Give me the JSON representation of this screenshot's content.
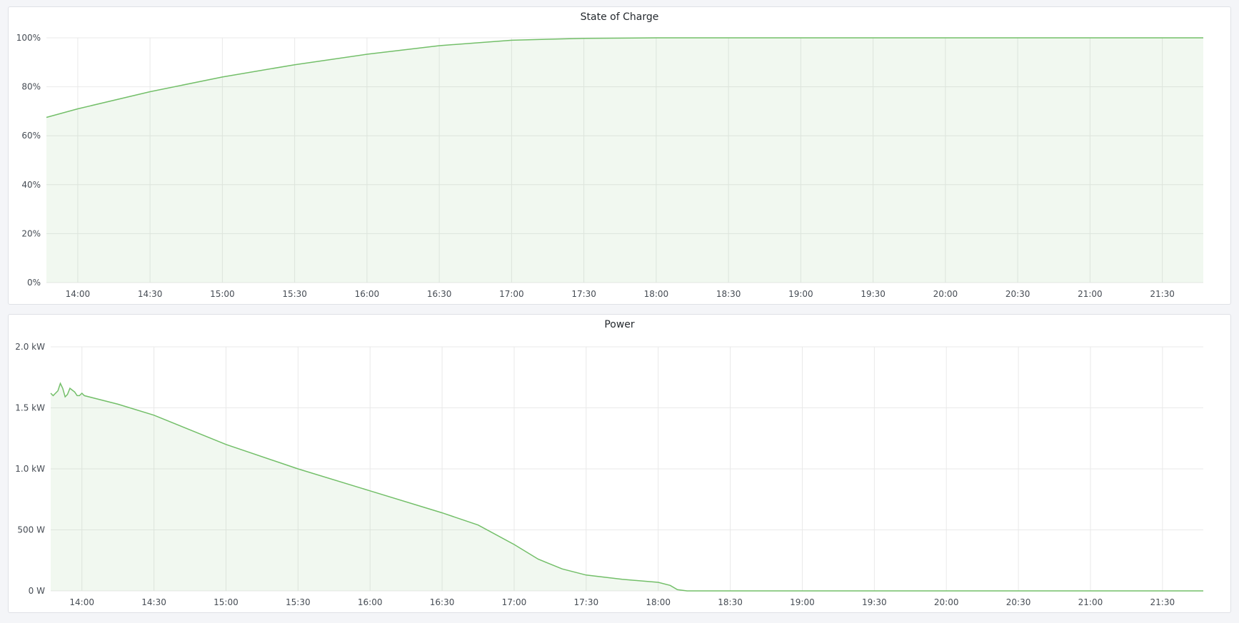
{
  "colors": {
    "line": "#73bf69",
    "fill": "rgba(115,191,105,0.1)",
    "grid": "#e9e9e9"
  },
  "chart_data": [
    {
      "type": "area",
      "title": "State of Charge",
      "x_range": [
        "13:47",
        "21:47"
      ],
      "ylim": [
        0,
        100
      ],
      "y_ticks": [
        "0%",
        "20%",
        "40%",
        "60%",
        "80%",
        "100%"
      ],
      "y_tick_values": [
        0,
        20,
        40,
        60,
        80,
        100
      ],
      "x_ticks": [
        "14:00",
        "14:30",
        "15:00",
        "15:30",
        "16:00",
        "16:30",
        "17:00",
        "17:30",
        "18:00",
        "18:30",
        "19:00",
        "19:30",
        "20:00",
        "20:30",
        "21:00",
        "21:30"
      ],
      "grid": true,
      "series": [
        {
          "x": [
            "13:47",
            "14:00",
            "14:30",
            "15:00",
            "15:30",
            "16:00",
            "16:30",
            "17:00",
            "17:30",
            "18:00",
            "21:47"
          ],
          "y": [
            67.5,
            71,
            78,
            84,
            89,
            93.3,
            96.8,
            99,
            99.8,
            100,
            100
          ]
        }
      ]
    },
    {
      "type": "area",
      "title": "Power",
      "x_range": [
        "13:47",
        "21:47"
      ],
      "ylim": [
        0,
        2000
      ],
      "y_ticks": [
        "0 W",
        "500 W",
        "1.0 kW",
        "1.5 kW",
        "2.0 kW"
      ],
      "y_tick_values": [
        0,
        500,
        1000,
        1500,
        2000
      ],
      "x_ticks": [
        "14:00",
        "14:30",
        "15:00",
        "15:30",
        "16:00",
        "16:30",
        "17:00",
        "17:30",
        "18:00",
        "18:30",
        "19:00",
        "19:30",
        "20:00",
        "20:30",
        "21:00",
        "21:30"
      ],
      "grid": true,
      "series": [
        {
          "x": [
            "13:47",
            "13:48",
            "13:50",
            "13:51",
            "13:52",
            "13:53",
            "13:54",
            "13:55",
            "13:57",
            "13:58",
            "13:59",
            "14:00",
            "14:01",
            "14:15",
            "14:30",
            "15:00",
            "15:30",
            "16:00",
            "16:30",
            "16:45",
            "17:00",
            "17:10",
            "17:20",
            "17:30",
            "17:45",
            "18:00",
            "18:05",
            "18:08",
            "18:12",
            "21:47"
          ],
          "y": [
            1620,
            1600,
            1640,
            1700,
            1660,
            1590,
            1610,
            1660,
            1630,
            1600,
            1600,
            1620,
            1600,
            1530,
            1440,
            1200,
            1000,
            820,
            640,
            540,
            380,
            260,
            180,
            130,
            95,
            70,
            45,
            10,
            0,
            0
          ]
        }
      ]
    }
  ]
}
